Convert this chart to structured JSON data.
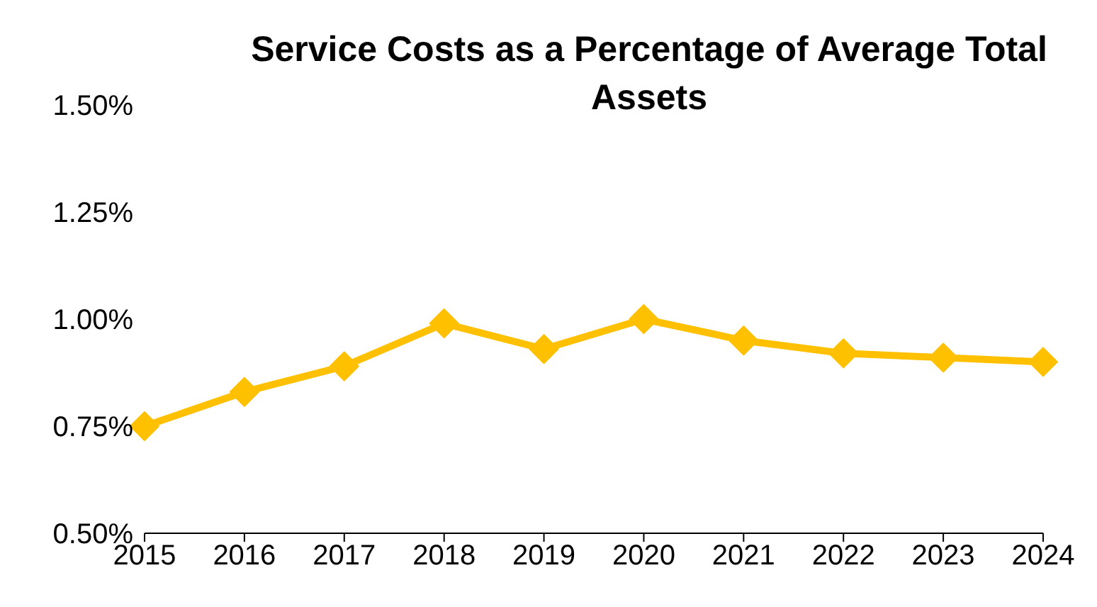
{
  "chart_data": {
    "type": "line",
    "title": "Service Costs as a Percentage of Average Total Assets",
    "categories": [
      "2015",
      "2016",
      "2017",
      "2018",
      "2019",
      "2020",
      "2021",
      "2022",
      "2023",
      "2024"
    ],
    "series": [
      {
        "color": "#ffc000",
        "values": [
          0.75,
          0.83,
          0.89,
          0.99,
          0.93,
          1.0,
          0.95,
          0.92,
          0.91,
          0.9
        ]
      }
    ],
    "ylim": [
      0.5,
      1.5
    ],
    "yticks": [
      {
        "value": 0.5,
        "label": "0.50%"
      },
      {
        "value": 0.75,
        "label": "0.75%"
      },
      {
        "value": 1.0,
        "label": "1.00%"
      },
      {
        "value": 1.25,
        "label": "1.25%"
      },
      {
        "value": 1.5,
        "label": "1.50%"
      }
    ],
    "marker": "diamond",
    "line_style": "solid",
    "grid": false,
    "legend": false
  }
}
